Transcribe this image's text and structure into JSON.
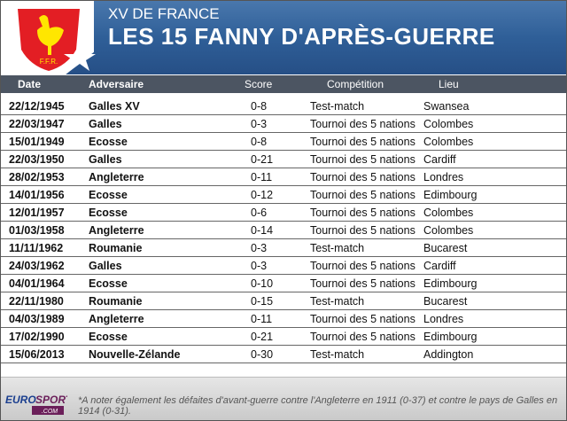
{
  "header": {
    "subtitle": "XV DE FRANCE",
    "title": "LES 15 FANNY D'APRÈS-GUERRE",
    "logo_text": "F.F.R."
  },
  "columns": [
    "Date",
    "Adversaire",
    "Score",
    "Compétition",
    "Lieu"
  ],
  "rows": [
    [
      "22/12/1945",
      "Galles XV",
      "0-8",
      "Test-match",
      "Swansea"
    ],
    [
      "22/03/1947",
      "Galles",
      "0-3",
      "Tournoi des 5 nations",
      "Colombes"
    ],
    [
      "15/01/1949",
      "Ecosse",
      "0-8",
      "Tournoi des 5 nations",
      "Colombes"
    ],
    [
      "22/03/1950",
      "Galles",
      "0-21",
      "Tournoi des 5 nations",
      "Cardiff"
    ],
    [
      "28/02/1953",
      "Angleterre",
      "0-11",
      "Tournoi des 5 nations",
      "Londres"
    ],
    [
      "14/01/1956",
      "Ecosse",
      "0-12",
      "Tournoi des 5 nations",
      "Edimbourg"
    ],
    [
      "12/01/1957",
      "Ecosse",
      "0-6",
      "Tournoi des 5 nations",
      "Colombes"
    ],
    [
      "01/03/1958",
      "Angleterre",
      "0-14",
      "Tournoi des 5 nations",
      "Colombes"
    ],
    [
      "11/11/1962",
      "Roumanie",
      "0-3",
      "Test-match",
      "Bucarest"
    ],
    [
      "24/03/1962",
      "Galles",
      "0-3",
      "Tournoi des 5 nations",
      "Cardiff"
    ],
    [
      "04/01/1964",
      "Ecosse",
      "0-10",
      "Tournoi des 5 nations",
      "Edimbourg"
    ],
    [
      "22/11/1980",
      "Roumanie",
      "0-15",
      "Test-match",
      "Bucarest"
    ],
    [
      "04/03/1989",
      "Angleterre",
      "0-11",
      "Tournoi des 5 nations",
      "Londres"
    ],
    [
      "17/02/1990",
      "Ecosse",
      "0-21",
      "Tournoi des 5 nations",
      "Edimbourg"
    ],
    [
      "15/06/2013",
      "Nouvelle-Zélande",
      "0-30",
      "Test-match",
      "Addington"
    ]
  ],
  "footer": {
    "note": "*A noter également les défaites d'avant-guerre contre l'Angleterre en 1911 (0-37) et contre le pays de Galles en 1914 (0-31).",
    "brand_euro": "EURO",
    "brand_sport": "SPORT",
    "brand_com": ".COM"
  },
  "colors": {
    "banner": "#2f5f98",
    "header_bar": "#4c5562",
    "shield": "#e31e24",
    "rooster": "#ffe600"
  }
}
